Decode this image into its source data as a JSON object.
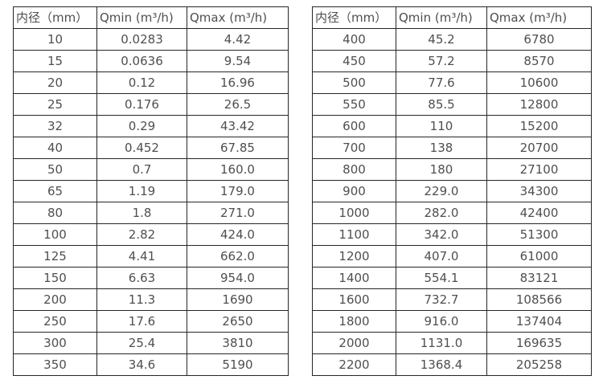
{
  "colors": {
    "background": "#ffffff",
    "table_border": "#262626",
    "table_text": "#4f4f4f"
  },
  "tables": [
    {
      "headers": [
        "内径（mm）",
        "Qmin (m³/h)",
        "Qmax (m³/h)"
      ],
      "rows": [
        [
          "10",
          "0.0283",
          "4.42"
        ],
        [
          "15",
          "0.0636",
          "9.54"
        ],
        [
          "20",
          "0.12",
          "16.96"
        ],
        [
          "25",
          "0.176",
          "26.5"
        ],
        [
          "32",
          "0.29",
          "43.42"
        ],
        [
          "40",
          "0.452",
          "67.85"
        ],
        [
          "50",
          "0.7",
          "160.0"
        ],
        [
          "65",
          "1.19",
          "179.0"
        ],
        [
          "80",
          "1.8",
          "271.0"
        ],
        [
          "100",
          "2.82",
          "424.0"
        ],
        [
          "125",
          "4.41",
          "662.0"
        ],
        [
          "150",
          "6.63",
          "954.0"
        ],
        [
          "200",
          "11.3",
          "1690"
        ],
        [
          "250",
          "17.6",
          "2650"
        ],
        [
          "300",
          "25.4",
          "3810"
        ],
        [
          "350",
          "34.6",
          "5190"
        ]
      ]
    },
    {
      "headers": [
        "内径（mm）",
        "Qmin (m³/h)",
        "Qmax (m³/h)"
      ],
      "rows": [
        [
          "400",
          "45.2",
          "6780"
        ],
        [
          "450",
          "57.2",
          "8570"
        ],
        [
          "500",
          "77.6",
          "10600"
        ],
        [
          "550",
          "85.5",
          "12800"
        ],
        [
          "600",
          "110",
          "15200"
        ],
        [
          "700",
          "138",
          "20700"
        ],
        [
          "800",
          "180",
          "27100"
        ],
        [
          "900",
          "229.0",
          "34300"
        ],
        [
          "1000",
          "282.0",
          "42400"
        ],
        [
          "1100",
          "342.0",
          "51300"
        ],
        [
          "1200",
          "407.0",
          "61000"
        ],
        [
          "1400",
          "554.1",
          "83121"
        ],
        [
          "1600",
          "732.7",
          "108566"
        ],
        [
          "1800",
          "916.0",
          "137404"
        ],
        [
          "2000",
          "1131.0",
          "169635"
        ],
        [
          "2200",
          "1368.4",
          "205258"
        ]
      ]
    }
  ]
}
